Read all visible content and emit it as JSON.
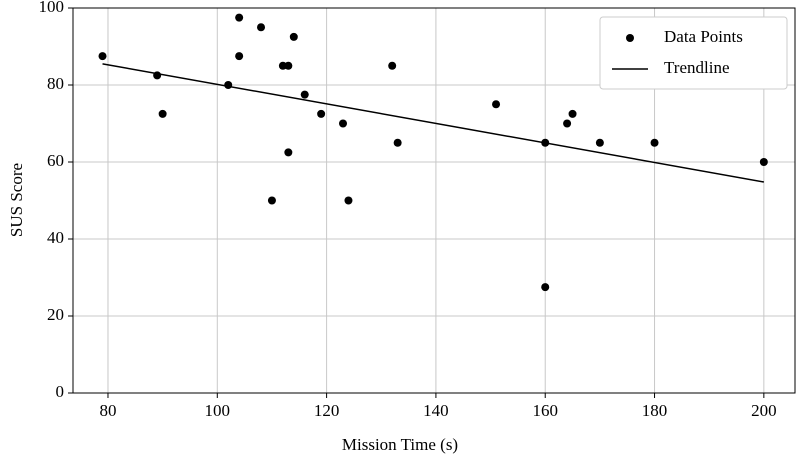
{
  "chart_data": {
    "type": "scatter",
    "xlabel": "Mission Time (s)",
    "ylabel": "SUS Score",
    "series": [
      {
        "name": "Data Points",
        "color": "#000000",
        "x": [
          79,
          89,
          90,
          102,
          104,
          104,
          108,
          110,
          112,
          113,
          113,
          114,
          116,
          119,
          123,
          124,
          132,
          133,
          151,
          160,
          160,
          164,
          165,
          170,
          180,
          200
        ],
        "values": [
          87.5,
          82.5,
          72.5,
          80,
          97.5,
          87.5,
          95,
          50,
          85,
          85,
          62.5,
          92.5,
          77.5,
          72.5,
          70,
          50,
          85,
          65,
          75,
          65,
          27.5,
          70,
          72.5,
          65,
          65,
          60
        ]
      },
      {
        "name": "Trendline",
        "color": "#000000",
        "kind": "line",
        "x": [
          79,
          200
        ],
        "values": [
          85.5,
          54.8
        ]
      }
    ],
    "xlim": [
      73.6,
      205.7
    ],
    "xticks": [
      80,
      100,
      120,
      140,
      160,
      180,
      200
    ],
    "ylim": [
      0,
      100
    ],
    "yticks": [
      0,
      20,
      40,
      60,
      80,
      100
    ],
    "grid": true,
    "legend": "upper right"
  }
}
